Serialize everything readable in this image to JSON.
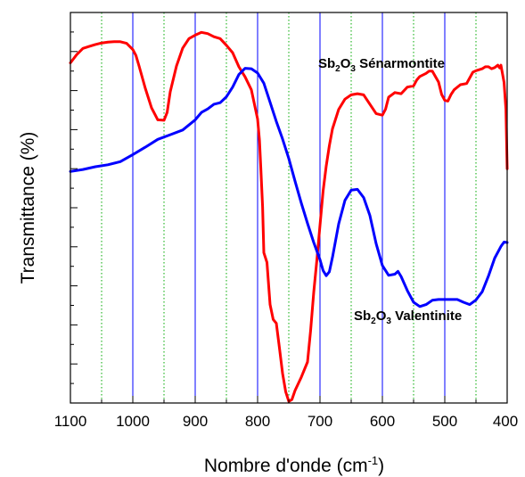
{
  "chart_data": {
    "type": "line",
    "xlabel_main": "Nombre d'onde (cm",
    "xlabel_sup": "-1",
    "xlabel_close": ")",
    "ylabel": "Transmittance (%)",
    "xlim": [
      1100,
      400
    ],
    "x_reversed": true,
    "ylim": [
      0,
      100
    ],
    "y_tick_labels_shown": false,
    "x_ticks": [
      1100,
      1000,
      900,
      800,
      700,
      600,
      500,
      400
    ],
    "x_tick_labels": [
      "1100",
      "1000",
      "900",
      "800",
      "700",
      "600",
      "500",
      "400"
    ],
    "major_grid_x": [
      1000,
      900,
      800,
      700,
      600,
      500
    ],
    "minor_grid_x": [
      1050,
      950,
      850,
      750,
      650,
      550,
      450
    ],
    "major_grid_color": "#0000ff",
    "minor_grid_color": "#00aa00",
    "series": [
      {
        "name": "Sb2O3 Sénarmontite",
        "color": "#ff0000",
        "points": [
          [
            1100,
            87.1
          ],
          [
            1090,
            89.2
          ],
          [
            1080,
            90.8
          ],
          [
            1070,
            91.3
          ],
          [
            1060,
            91.8
          ],
          [
            1050,
            92.2
          ],
          [
            1040,
            92.4
          ],
          [
            1030,
            92.5
          ],
          [
            1020,
            92.5
          ],
          [
            1010,
            92.1
          ],
          [
            1000,
            90.5
          ],
          [
            995,
            89.0
          ],
          [
            990,
            86.3
          ],
          [
            980,
            80.6
          ],
          [
            970,
            75.6
          ],
          [
            960,
            72.5
          ],
          [
            950,
            72.4
          ],
          [
            945,
            74.4
          ],
          [
            940,
            79.7
          ],
          [
            930,
            86.3
          ],
          [
            920,
            90.9
          ],
          [
            910,
            93.3
          ],
          [
            900,
            94.2
          ],
          [
            890,
            94.9
          ],
          [
            880,
            94.6
          ],
          [
            870,
            93.8
          ],
          [
            860,
            93.3
          ],
          [
            850,
            91.6
          ],
          [
            840,
            89.7
          ],
          [
            830,
            86.1
          ],
          [
            820,
            83.5
          ],
          [
            810,
            80.2
          ],
          [
            800,
            72.7
          ],
          [
            797,
            67.3
          ],
          [
            795,
            60.7
          ],
          [
            792,
            50.3
          ],
          [
            790,
            38.5
          ],
          [
            785,
            36.0
          ],
          [
            780,
            25.2
          ],
          [
            775,
            21.4
          ],
          [
            770,
            20.4
          ],
          [
            765,
            14.1
          ],
          [
            760,
            7.6
          ],
          [
            755,
            2.9
          ],
          [
            750,
            0.4
          ],
          [
            745,
            0.9
          ],
          [
            740,
            3.2
          ],
          [
            730,
            6.6
          ],
          [
            720,
            10.5
          ],
          [
            715,
            18.6
          ],
          [
            710,
            28.4
          ],
          [
            705,
            36.6
          ],
          [
            700,
            45.5
          ],
          [
            695,
            54.3
          ],
          [
            690,
            60.7
          ],
          [
            685,
            65.9
          ],
          [
            680,
            70.2
          ],
          [
            670,
            75.2
          ],
          [
            660,
            77.8
          ],
          [
            650,
            78.9
          ],
          [
            640,
            79.2
          ],
          [
            630,
            78.9
          ],
          [
            620,
            76.5
          ],
          [
            610,
            74.1
          ],
          [
            600,
            73.7
          ],
          [
            595,
            75.2
          ],
          [
            590,
            78.3
          ],
          [
            580,
            79.5
          ],
          [
            570,
            79.2
          ],
          [
            560,
            80.9
          ],
          [
            550,
            81.2
          ],
          [
            545,
            82.7
          ],
          [
            540,
            83.6
          ],
          [
            530,
            84.4
          ],
          [
            525,
            85.0
          ],
          [
            520,
            85.0
          ],
          [
            510,
            82.2
          ],
          [
            505,
            79.0
          ],
          [
            500,
            77.5
          ],
          [
            495,
            77.3
          ],
          [
            490,
            79.0
          ],
          [
            485,
            80.2
          ],
          [
            475,
            81.5
          ],
          [
            465,
            81.8
          ],
          [
            455,
            84.7
          ],
          [
            450,
            85.1
          ],
          [
            440,
            85.6
          ],
          [
            435,
            86.1
          ],
          [
            430,
            86.1
          ],
          [
            425,
            85.6
          ],
          [
            420,
            85.9
          ],
          [
            415,
            86.5
          ],
          [
            412,
            85.8
          ],
          [
            410,
            86.5
          ],
          [
            405,
            82.1
          ],
          [
            402,
            75.2
          ],
          [
            400,
            60.0
          ]
        ]
      },
      {
        "name": "Sb2O3 Valentinite",
        "color": "#0000ff",
        "points": [
          [
            1100,
            59.3
          ],
          [
            1080,
            59.8
          ],
          [
            1060,
            60.5
          ],
          [
            1040,
            61.0
          ],
          [
            1020,
            61.8
          ],
          [
            1000,
            63.6
          ],
          [
            980,
            65.5
          ],
          [
            960,
            67.5
          ],
          [
            940,
            68.7
          ],
          [
            920,
            69.9
          ],
          [
            900,
            72.5
          ],
          [
            890,
            74.4
          ],
          [
            880,
            75.3
          ],
          [
            870,
            76.5
          ],
          [
            860,
            76.9
          ],
          [
            850,
            78.4
          ],
          [
            840,
            80.9
          ],
          [
            830,
            84.1
          ],
          [
            820,
            85.7
          ],
          [
            810,
            85.6
          ],
          [
            800,
            84.5
          ],
          [
            790,
            81.9
          ],
          [
            780,
            77.0
          ],
          [
            770,
            72.1
          ],
          [
            760,
            67.6
          ],
          [
            750,
            62.6
          ],
          [
            740,
            56.8
          ],
          [
            730,
            51.2
          ],
          [
            720,
            46.0
          ],
          [
            710,
            41.1
          ],
          [
            700,
            36.7
          ],
          [
            695,
            33.9
          ],
          [
            690,
            32.6
          ],
          [
            685,
            33.6
          ],
          [
            680,
            37.3
          ],
          [
            670,
            45.9
          ],
          [
            660,
            51.9
          ],
          [
            650,
            54.5
          ],
          [
            640,
            54.7
          ],
          [
            630,
            52.6
          ],
          [
            620,
            48.0
          ],
          [
            610,
            40.8
          ],
          [
            600,
            35.2
          ],
          [
            590,
            32.7
          ],
          [
            580,
            33.0
          ],
          [
            575,
            33.7
          ],
          [
            570,
            32.4
          ],
          [
            560,
            28.8
          ],
          [
            550,
            25.8
          ],
          [
            540,
            24.7
          ],
          [
            530,
            25.2
          ],
          [
            520,
            26.3
          ],
          [
            510,
            26.5
          ],
          [
            500,
            26.5
          ],
          [
            490,
            26.5
          ],
          [
            480,
            26.5
          ],
          [
            470,
            25.8
          ],
          [
            460,
            25.2
          ],
          [
            450,
            26.4
          ],
          [
            440,
            28.5
          ],
          [
            430,
            32.5
          ],
          [
            420,
            37.1
          ],
          [
            410,
            40.1
          ],
          [
            405,
            41.2
          ],
          [
            400,
            41.1
          ]
        ]
      }
    ],
    "annotations": [
      {
        "base": "Sb",
        "sub1": "2",
        "mid": "O",
        "sub2": "3",
        "rest": " Sénarmontite"
      },
      {
        "base": "Sb",
        "sub1": "2",
        "mid": "O",
        "sub2": "3",
        "rest": " Valentinite"
      }
    ]
  }
}
